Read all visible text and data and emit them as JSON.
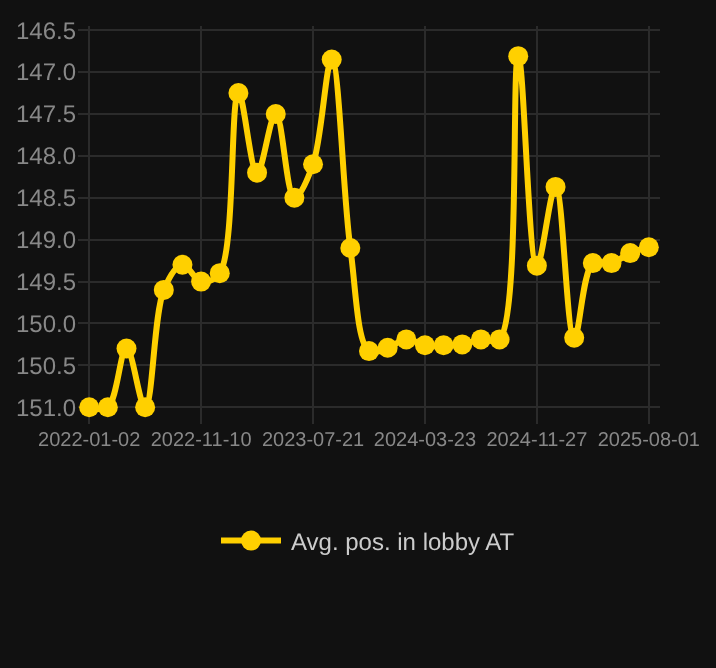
{
  "chart_data": {
    "type": "line",
    "categories": [
      "2022-01-02",
      null,
      null,
      null,
      null,
      null,
      "2022-11-10",
      null,
      null,
      null,
      null,
      null,
      "2023-07-21",
      null,
      null,
      null,
      null,
      null,
      "2024-03-23",
      null,
      null,
      null,
      null,
      null,
      "2024-11-27",
      null,
      null,
      null,
      null,
      null,
      "2025-08-01"
    ],
    "series": [
      {
        "name": "Avg. pos. in lobby AT",
        "color": "#ffd000",
        "values": [
          151.0,
          151.0,
          150.3,
          151.0,
          149.6,
          149.3,
          149.5,
          149.4,
          147.25,
          148.2,
          147.5,
          148.5,
          148.1,
          146.85,
          149.1,
          150.33,
          150.29,
          150.19,
          150.26,
          150.26,
          150.25,
          150.19,
          150.19,
          146.81,
          149.31,
          148.37,
          150.17,
          149.28,
          149.28,
          149.16,
          149.09
        ]
      }
    ],
    "ylim": [
      151.2,
      146.45
    ],
    "yticks": [
      {
        "value": 146.5,
        "label": "146.5"
      },
      {
        "value": 147,
        "label": "147.0"
      },
      {
        "value": 147.5,
        "label": "147.5"
      },
      {
        "value": 148,
        "label": "148.0"
      },
      {
        "value": 148.5,
        "label": "148.5"
      },
      {
        "value": 149,
        "label": "149.0"
      },
      {
        "value": 149.5,
        "label": "149.5"
      },
      {
        "value": 150,
        "label": "150.0"
      },
      {
        "value": 150.5,
        "label": "150.5"
      },
      {
        "value": 151,
        "label": "151.0"
      }
    ],
    "grid": true,
    "legend": "bottom",
    "marker": "circle",
    "line_style": "solid"
  }
}
